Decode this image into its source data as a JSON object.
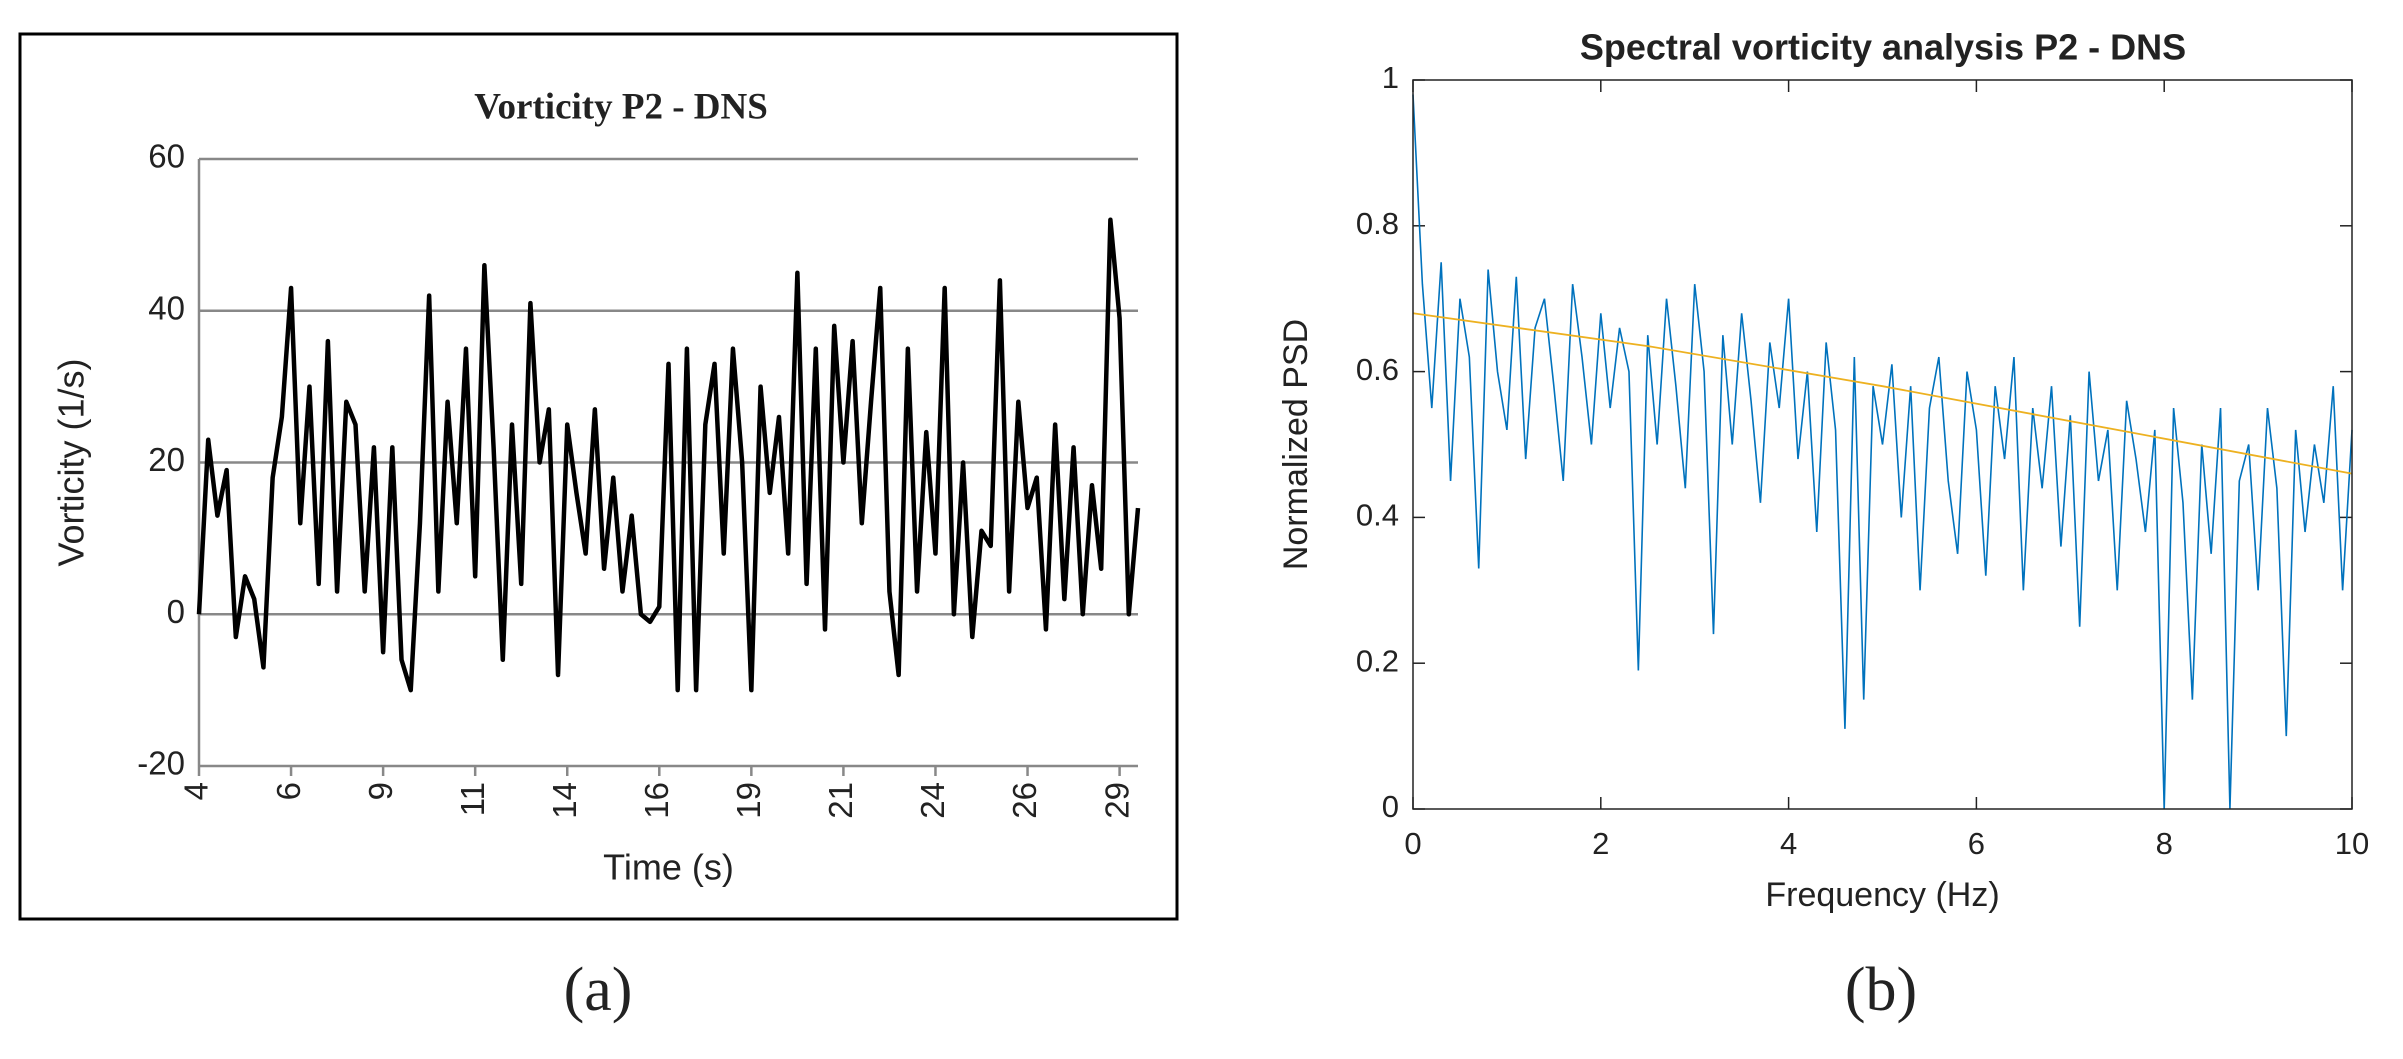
{
  "chart_data": [
    {
      "type": "line",
      "title": "Vorticity  P2 - DNS",
      "xlabel": "Time (s)",
      "ylabel": "Vorticity (1/s)",
      "caption": "(a)",
      "categories": [
        "4",
        null,
        null,
        null,
        null,
        null,
        null,
        null,
        null,
        null,
        "6",
        null,
        null,
        null,
        null,
        null,
        null,
        null,
        null,
        null,
        "9",
        null,
        null,
        null,
        null,
        null,
        null,
        null,
        null,
        null,
        "11",
        null,
        null,
        null,
        null,
        null,
        null,
        null,
        null,
        null,
        "14",
        null,
        null,
        null,
        null,
        null,
        null,
        null,
        null,
        null,
        "16",
        null,
        null,
        null,
        null,
        null,
        null,
        null,
        null,
        null,
        "19",
        null,
        null,
        null,
        null,
        null,
        null,
        null,
        null,
        null,
        "21",
        null,
        null,
        null,
        null,
        null,
        null,
        null,
        null,
        null,
        "24",
        null,
        null,
        null,
        null,
        null,
        null,
        null,
        null,
        null,
        "26",
        null,
        null,
        null,
        null,
        null,
        null,
        null,
        null,
        null,
        "29",
        null,
        null
      ],
      "values": [
        0,
        23,
        13,
        19,
        -3,
        5,
        2,
        -7,
        18,
        26,
        43,
        12,
        30,
        4,
        36,
        3,
        28,
        25,
        3,
        22,
        -5,
        22,
        -6,
        -10,
        12,
        42,
        3,
        28,
        12,
        35,
        5,
        46,
        22,
        -6,
        25,
        4,
        41,
        20,
        27,
        -8,
        25,
        16,
        8,
        27,
        6,
        18,
        3,
        13,
        0,
        -1,
        1,
        33,
        -10,
        35,
        -10,
        25,
        33,
        8,
        35,
        20,
        -10,
        30,
        16,
        26,
        8,
        45,
        4,
        35,
        -2,
        38,
        20,
        36,
        12,
        28,
        43,
        3,
        -8,
        35,
        3,
        24,
        8,
        43,
        0,
        20,
        -3,
        11,
        9,
        44,
        3,
        28,
        14,
        18,
        -2,
        25,
        2,
        22,
        0,
        17,
        6,
        52,
        39,
        0,
        14
      ],
      "color": "#000000",
      "ylim": [
        -20,
        60
      ],
      "yticks": [
        -20,
        0,
        20,
        40,
        60
      ],
      "grid": true
    },
    {
      "type": "line",
      "title": "Spectral vorticity analysis P2 - DNS",
      "xlabel": "Frequency (Hz)",
      "ylabel": "Normalized PSD",
      "caption": "(b)",
      "x": [
        0,
        0.1,
        0.2,
        0.3,
        0.4,
        0.5,
        0.6,
        0.7,
        0.8,
        0.9,
        1,
        1.1,
        1.2,
        1.3,
        1.4,
        1.5,
        1.6,
        1.7,
        1.8,
        1.9,
        2,
        2.1,
        2.2,
        2.3,
        2.4,
        2.5,
        2.6,
        2.7,
        2.8,
        2.9,
        3,
        3.1,
        3.2,
        3.3,
        3.4,
        3.5,
        3.6,
        3.7,
        3.8,
        3.9,
        4,
        4.1,
        4.2,
        4.3,
        4.4,
        4.5,
        4.6,
        4.7,
        4.8,
        4.9,
        5,
        5.1,
        5.2,
        5.3,
        5.4,
        5.5,
        5.6,
        5.7,
        5.8,
        5.9,
        6,
        6.1,
        6.2,
        6.3,
        6.4,
        6.5,
        6.6,
        6.7,
        6.8,
        6.9,
        7,
        7.1,
        7.2,
        7.3,
        7.4,
        7.5,
        7.6,
        7.7,
        7.8,
        7.9,
        8,
        8.1,
        8.2,
        8.3,
        8.4,
        8.5,
        8.6,
        8.7,
        8.8,
        8.9,
        9,
        9.1,
        9.2,
        9.3,
        9.4,
        9.5,
        9.6,
        9.7,
        9.8,
        9.9,
        10
      ],
      "series": [
        {
          "color": "#0072bd",
          "values": [
            0.98,
            0.72,
            0.55,
            0.75,
            0.45,
            0.7,
            0.62,
            0.33,
            0.74,
            0.6,
            0.52,
            0.73,
            0.48,
            0.66,
            0.7,
            0.58,
            0.45,
            0.72,
            0.62,
            0.5,
            0.68,
            0.55,
            0.66,
            0.6,
            0.19,
            0.65,
            0.5,
            0.7,
            0.58,
            0.44,
            0.72,
            0.6,
            0.24,
            0.65,
            0.5,
            0.68,
            0.56,
            0.42,
            0.64,
            0.55,
            0.7,
            0.48,
            0.6,
            0.38,
            0.64,
            0.52,
            0.11,
            0.62,
            0.15,
            0.58,
            0.5,
            0.61,
            0.4,
            0.58,
            0.3,
            0.55,
            0.62,
            0.45,
            0.35,
            0.6,
            0.52,
            0.32,
            0.58,
            0.48,
            0.62,
            0.3,
            0.55,
            0.44,
            0.58,
            0.36,
            0.54,
            0.25,
            0.6,
            0.45,
            0.52,
            0.3,
            0.56,
            0.48,
            0.38,
            0.52,
            0,
            0.55,
            0.42,
            0.15,
            0.5,
            0.35,
            0.55,
            0,
            0.45,
            0.5,
            0.3,
            0.55,
            0.44,
            0.1,
            0.52,
            0.38,
            0.5,
            0.42,
            0.58,
            0.3,
            0.52
          ]
        },
        {
          "color": "#edb120",
          "x": [
            0,
            2.5,
            5,
            7.5,
            10
          ],
          "values": [
            0.68,
            0.635,
            0.58,
            0.52,
            0.46
          ]
        }
      ],
      "xlim": [
        0,
        10
      ],
      "xticks": [
        0,
        2,
        4,
        6,
        8,
        10
      ],
      "ylim": [
        0,
        1
      ],
      "yticks": [
        0,
        0.2,
        0.4,
        0.6,
        0.8,
        1
      ]
    }
  ]
}
